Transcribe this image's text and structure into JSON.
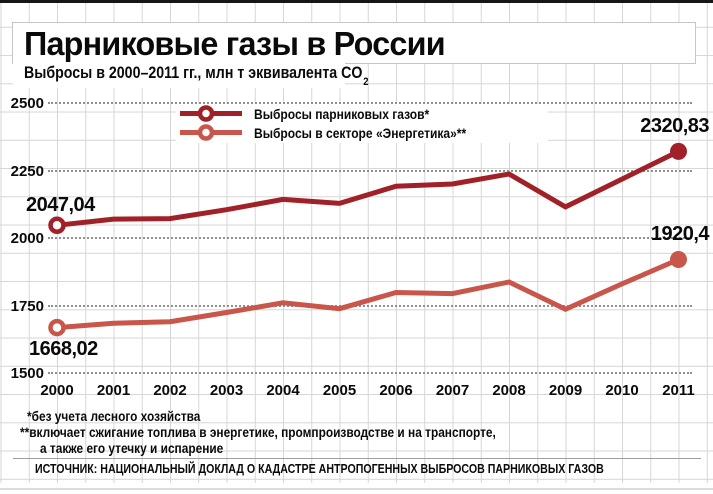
{
  "header": {
    "title": "Парниковые газы в России",
    "subtitle_main": "Выбросы в 2000–2011 гг., млн т эквивалента CO",
    "subtitle_sub": "2"
  },
  "legend": {
    "items": [
      {
        "label": "Выбросы парниковых газов*",
        "color": "#A02127"
      },
      {
        "label": "Выбросы в секторе «Энергетика»**",
        "color": "#C9564A"
      }
    ]
  },
  "chart_data": {
    "type": "line",
    "title": "Парниковые газы в России",
    "subtitle": "Выбросы в 2000–2011 гг., млн т эквивалента CO2",
    "x": [
      "2000",
      "2001",
      "2002",
      "2003",
      "2004",
      "2005",
      "2006",
      "2007",
      "2008",
      "2009",
      "2010",
      "2011"
    ],
    "series": [
      {
        "name": "Выбросы парниковых газов*",
        "color": "#A02127",
        "values": [
          2047.04,
          2070,
          2072,
          2105,
          2143,
          2128,
          2192,
          2200,
          2237,
          2115,
          2218,
          2320.83
        ],
        "start_label": "2047,04",
        "end_label": "2320,83"
      },
      {
        "name": "Выбросы в секторе «Энергетика»**",
        "color": "#C9564A",
        "values": [
          1668.02,
          1684,
          1690,
          1724,
          1760,
          1738,
          1798,
          1794,
          1837,
          1736,
          1830,
          1920.4
        ],
        "start_label": "1668,02",
        "end_label": "1920,4"
      }
    ],
    "ylim": [
      1500,
      2500
    ],
    "yticks": [
      "2500",
      "2250",
      "2000",
      "1750",
      "1500"
    ],
    "grid": "dotted horizontal lines at yticks over light-gray graph paper",
    "legend_position": "top"
  },
  "footnotes": {
    "line1": "*без учета лесного хозяйства",
    "line2": "**включает сжигание топлива в энергетике, промпроизводстве и на транспорте,",
    "line3": "а также его утечку и испарение"
  },
  "source": "ИСТОЧНИК: НАЦИОНАЛЬНЫЙ ДОКЛАД О КАДАСТРЕ АНТРОПОГЕННЫХ ВЫБРОСОВ ПАРНИКОВЫХ ГАЗОВ",
  "colors": {
    "series_emissions": "#A02127",
    "series_energy": "#C9564A",
    "grid": "#d6d6d6",
    "dotted": "#8f8f8f",
    "top_bar": "#161616"
  }
}
